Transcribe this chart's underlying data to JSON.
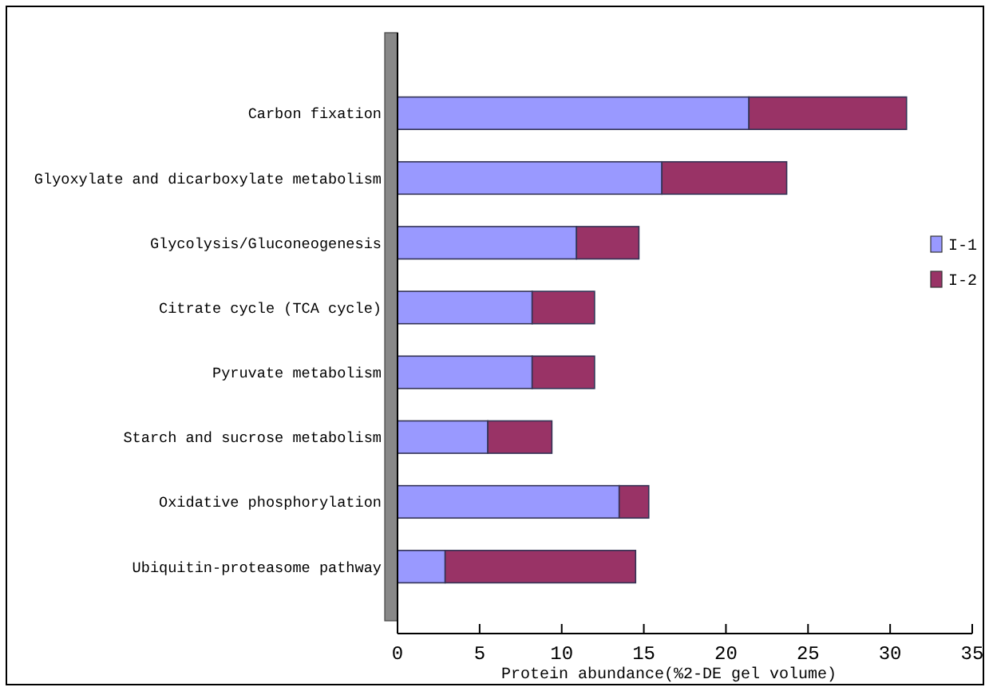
{
  "chart_data": {
    "type": "bar",
    "orientation": "horizontal",
    "stacked": true,
    "xlabel": "Protein abundance(%2-DE gel volume)",
    "categories": [
      "Carbon fixation",
      "Glyoxylate and dicarboxylate metabolism",
      "Glycolysis/Gluconeogenesis",
      "Citrate cycle (TCA cycle)",
      "Pyruvate metabolism",
      "Starch and sucrose metabolism",
      "Oxidative phosphorylation",
      "Ubiquitin-proteasome pathway"
    ],
    "series": [
      {
        "name": "I-1",
        "color": "#9999ff",
        "values": [
          21.4,
          16.1,
          10.9,
          8.2,
          8.2,
          5.5,
          13.5,
          2.9
        ]
      },
      {
        "name": "I-2",
        "color": "#993366",
        "values": [
          9.6,
          7.6,
          3.8,
          3.8,
          3.8,
          3.9,
          1.8,
          11.6
        ]
      }
    ],
    "xlim": [
      0,
      35
    ],
    "xticks": [
      0,
      5,
      10,
      15,
      20,
      25,
      30,
      35
    ],
    "grid": false,
    "legend": "right"
  }
}
